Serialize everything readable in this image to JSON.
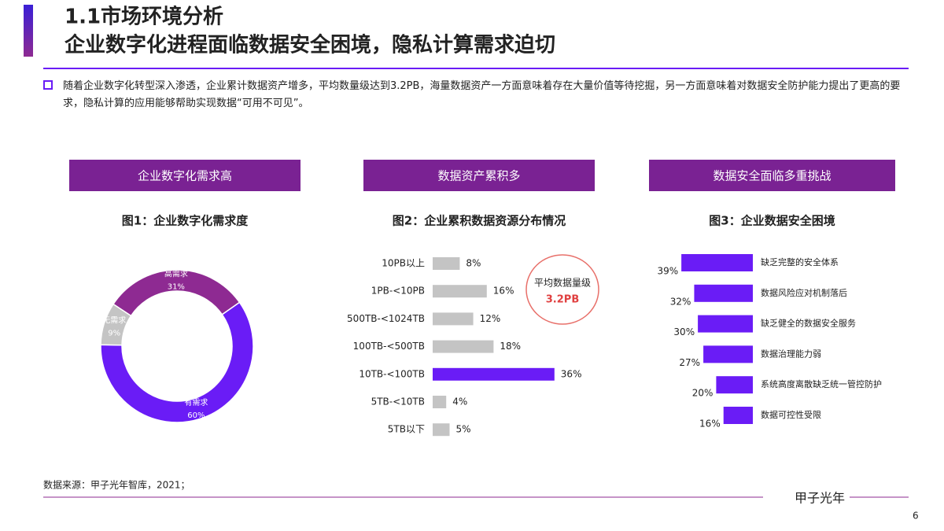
{
  "header": {
    "section": "1.1市场环境分析",
    "title": "企业数字化进程面临数据安全困境，隐私计算需求迫切"
  },
  "summary": "随着企业数字化转型深入渗透，企业累计数据资产增多，平均数量级达到3.2PB，海量数据资产一方面意味着存在大量价值等待挖掘，另一方面意味着对数据安全防护能力提出了更高的要求，隐私计算的应用能够帮助实现数据“可用不可见”。",
  "panels": [
    "企业数字化需求高",
    "数据资产累积多",
    "数据安全面临多重挑战"
  ],
  "chart_data": [
    {
      "type": "pie",
      "title": "图1：企业数字化需求度",
      "categories": [
        "高需求",
        "有需求",
        "无需求"
      ],
      "values": [
        31,
        60,
        9
      ],
      "value_labels": [
        "31%",
        "60%",
        "9%"
      ],
      "colors": [
        "#8e2a92",
        "#6a1cf6",
        "#c4c4c4"
      ]
    },
    {
      "type": "bar",
      "title": "图2：企业累积数据资源分布情况",
      "categories": [
        "10PB以上",
        "1PB-<10PB",
        "500TB-<1024TB",
        "100TB-<500TB",
        "10TB-<100TB",
        "5TB-<10TB",
        "5TB以下"
      ],
      "values": [
        8,
        16,
        12,
        18,
        36,
        4,
        5
      ],
      "value_labels": [
        "8%",
        "16%",
        "12%",
        "18%",
        "36%",
        "4%",
        "5%"
      ],
      "colors": [
        "#c4c4c4",
        "#c4c4c4",
        "#c4c4c4",
        "#c4c4c4",
        "#6a1cf6",
        "#c4c4c4",
        "#c4c4c4"
      ],
      "annotation": {
        "label": "平均数据量级",
        "value": "3.2PB"
      }
    },
    {
      "type": "bar",
      "title": "图3：企业数据安全困境",
      "categories": [
        "缺乏完整的安全体系",
        "数据风险应对机制落后",
        "缺乏健全的数据安全服务",
        "数据治理能力弱",
        "系统高度离散缺乏统一管控防护",
        "数据可控性受限"
      ],
      "values": [
        39,
        32,
        30,
        27,
        20,
        16
      ],
      "value_labels": [
        "39%",
        "32%",
        "30%",
        "27%",
        "20%",
        "16%"
      ],
      "color": "#6a1cf6"
    }
  ],
  "source": "数据来源：甲子光年智库，2021；",
  "logo": "甲子光年",
  "page": 6
}
